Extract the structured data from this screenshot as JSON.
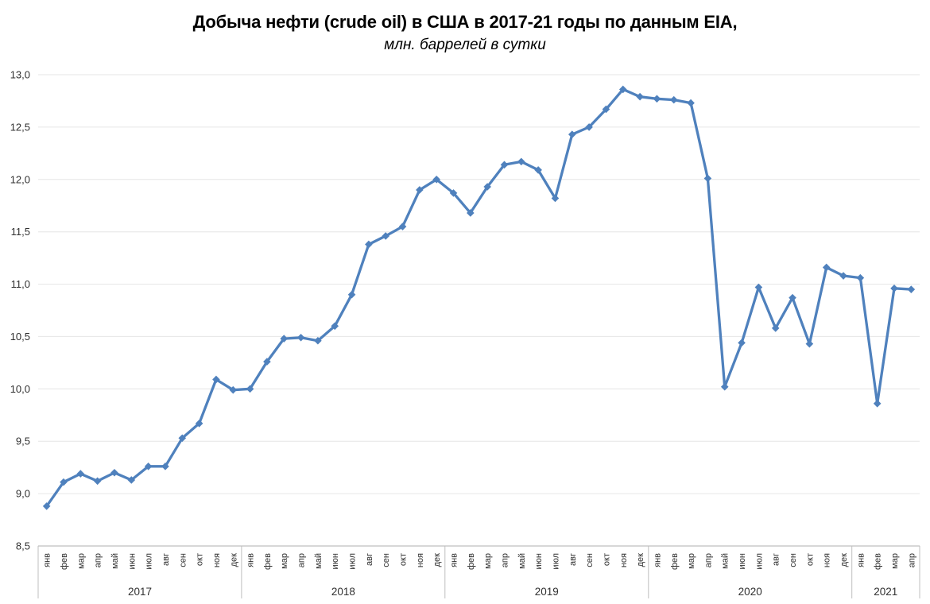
{
  "chart_data": {
    "type": "line",
    "title": "Добыча нефти (crude oil) в США в 2017-21 годы по данным EIA,",
    "subtitle": "млн. баррелей в сутки",
    "ylabel": "",
    "xlabel": "",
    "ylim": [
      8.5,
      13.0
    ],
    "ytick_step": 0.5,
    "decimal_separator": ",",
    "grid": true,
    "legend": "none",
    "line_color": "#4f81bd",
    "grid_color": "#e6e6e6",
    "axis_color": "#bfbfbf",
    "groups": [
      {
        "year": "2017",
        "months": [
          "янв",
          "фев",
          "мар",
          "апр",
          "май",
          "июн",
          "июл",
          "авг",
          "сен",
          "окт",
          "ноя",
          "дек"
        ],
        "values": [
          8.88,
          9.11,
          9.19,
          9.12,
          9.2,
          9.13,
          9.26,
          9.26,
          9.53,
          9.67,
          10.09,
          9.99
        ]
      },
      {
        "year": "2018",
        "months": [
          "янв",
          "фев",
          "мар",
          "апр",
          "май",
          "июн",
          "июл",
          "авг",
          "сен",
          "окт",
          "ноя",
          "дек"
        ],
        "values": [
          10.0,
          10.26,
          10.48,
          10.49,
          10.46,
          10.6,
          10.9,
          11.38,
          11.46,
          11.55,
          11.9,
          12.0
        ]
      },
      {
        "year": "2019",
        "months": [
          "янв",
          "фев",
          "мар",
          "апр",
          "май",
          "июн",
          "июл",
          "авг",
          "сен",
          "окт",
          "ноя",
          "дек"
        ],
        "values": [
          11.87,
          11.68,
          11.93,
          12.14,
          12.17,
          12.09,
          11.82,
          12.43,
          12.5,
          12.67,
          12.86,
          12.79
        ]
      },
      {
        "year": "2020",
        "months": [
          "янв",
          "фев",
          "мар",
          "апр",
          "май",
          "июн",
          "июл",
          "авг",
          "сен",
          "окт",
          "ноя",
          "дек"
        ],
        "values": [
          12.77,
          12.76,
          12.73,
          12.01,
          10.02,
          10.44,
          10.97,
          10.58,
          10.87,
          10.43,
          11.16,
          11.08
        ]
      },
      {
        "year": "2021",
        "months": [
          "янв",
          "фев",
          "мар",
          "апр"
        ],
        "values": [
          11.06,
          9.86,
          10.96,
          10.95
        ]
      }
    ]
  }
}
